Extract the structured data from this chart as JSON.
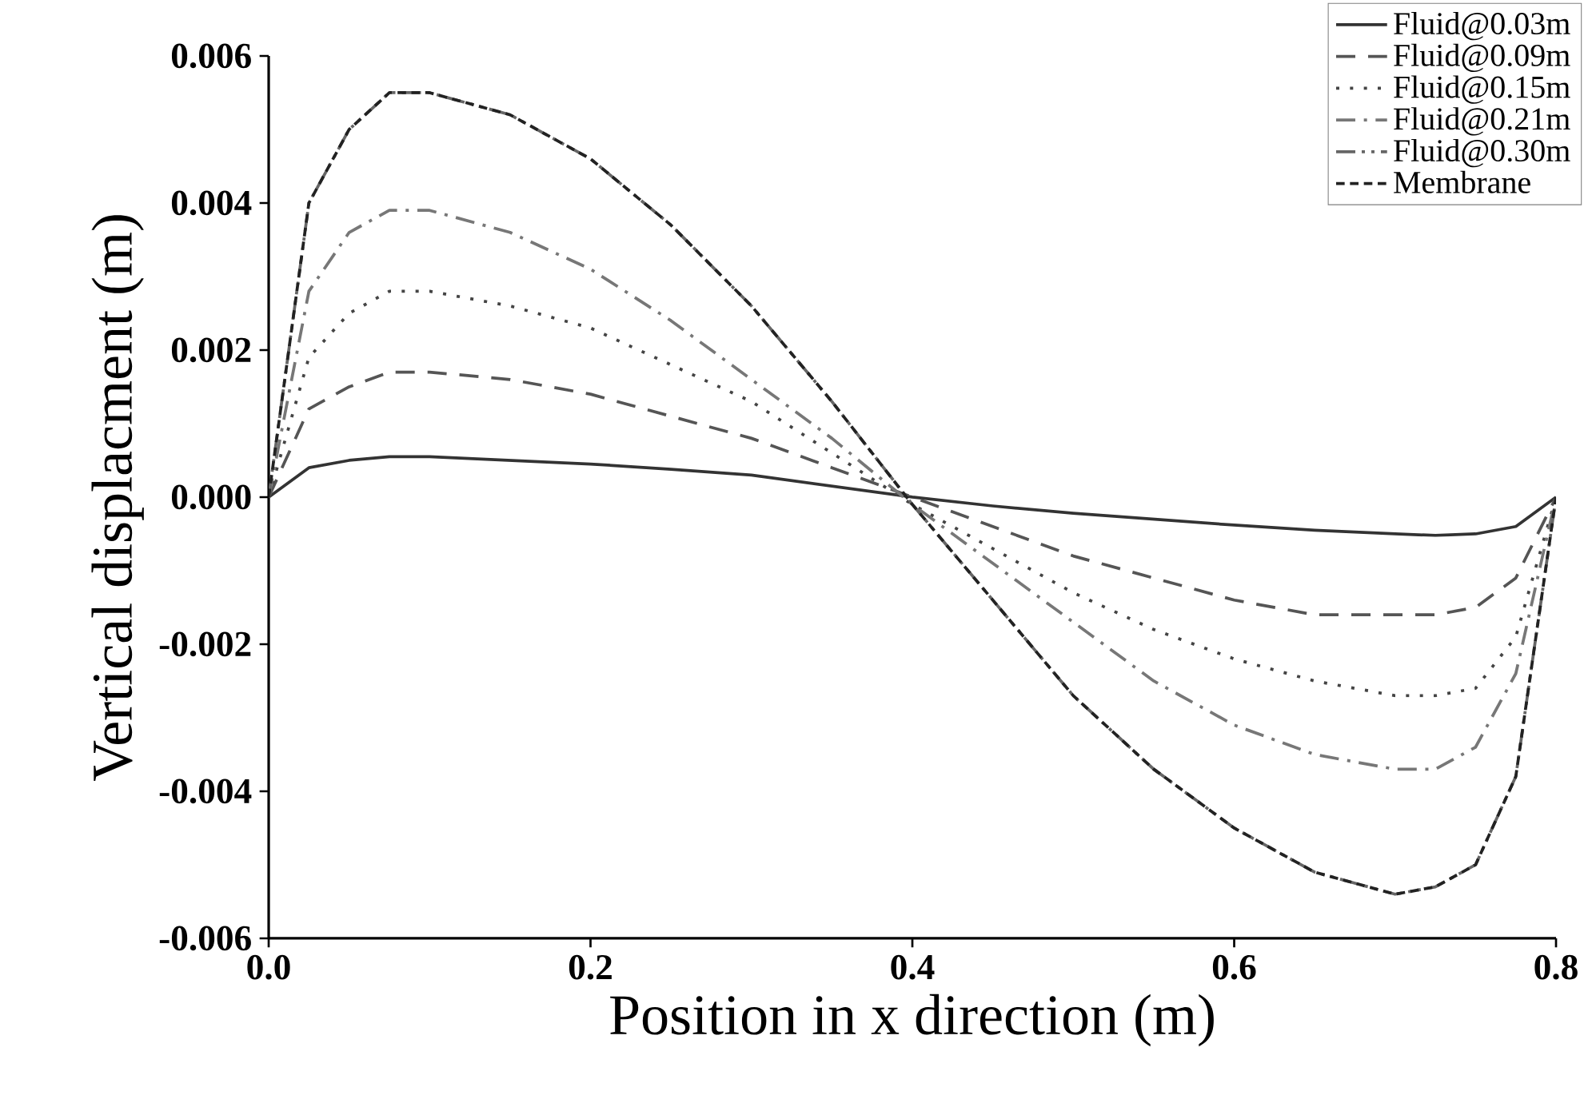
{
  "chart_data": {
    "type": "line",
    "xlabel": "Position in x direction (m)",
    "ylabel": "Vertical displacment (m)",
    "x": [
      0,
      0.025,
      0.05,
      0.075,
      0.1,
      0.15,
      0.2,
      0.25,
      0.3,
      0.35,
      0.4,
      0.45,
      0.5,
      0.55,
      0.6,
      0.65,
      0.7,
      0.725,
      0.75,
      0.775,
      0.8
    ],
    "xlim": [
      0,
      0.8
    ],
    "ylim": [
      -0.006,
      0.006
    ],
    "xticks": [
      {
        "value": 0,
        "label": "0.0"
      },
      {
        "value": 0.2,
        "label": "0.2"
      },
      {
        "value": 0.4,
        "label": "0.4"
      },
      {
        "value": 0.6,
        "label": "0.6"
      },
      {
        "value": 0.8,
        "label": "0.8"
      }
    ],
    "yticks": [
      {
        "value": -0.006,
        "label": "-0.006"
      },
      {
        "value": -0.004,
        "label": "-0.004"
      },
      {
        "value": -0.002,
        "label": "-0.002"
      },
      {
        "value": 0,
        "label": "0.000"
      },
      {
        "value": 0.002,
        "label": "0.002"
      },
      {
        "value": 0.004,
        "label": "0.004"
      },
      {
        "value": 0.006,
        "label": "0.006"
      }
    ],
    "grid": false,
    "legend": "top right",
    "series": [
      {
        "name": "Fluid@0.03m",
        "color": "#333333",
        "line_style": "solid",
        "values": [
          0,
          0.0004,
          0.0005,
          0.00055,
          0.00055,
          0.0005,
          0.00045,
          0.00038,
          0.0003,
          0.00015,
          0,
          -0.00012,
          -0.00022,
          -0.0003,
          -0.00038,
          -0.00045,
          -0.0005,
          -0.00052,
          -0.0005,
          -0.0004,
          0
        ]
      },
      {
        "name": "Fluid@0.09m",
        "color": "#555555",
        "line_style": "dashed",
        "values": [
          0,
          0.0012,
          0.0015,
          0.0017,
          0.0017,
          0.0016,
          0.0014,
          0.0011,
          0.0008,
          0.0004,
          0,
          -0.0004,
          -0.0008,
          -0.0011,
          -0.0014,
          -0.0016,
          -0.0016,
          -0.0016,
          -0.0015,
          -0.0011,
          0
        ]
      },
      {
        "name": "Fluid@0.15m",
        "color": "#444444",
        "line_style": "dotted",
        "values": [
          0,
          0.0019,
          0.0025,
          0.0028,
          0.0028,
          0.0026,
          0.0023,
          0.0018,
          0.0013,
          0.0006,
          -0.0001,
          -0.0007,
          -0.0013,
          -0.0018,
          -0.0022,
          -0.0025,
          -0.0027,
          -0.0027,
          -0.0026,
          -0.0019,
          0
        ]
      },
      {
        "name": "Fluid@0.21m",
        "color": "#777777",
        "line_style": "dashdot",
        "values": [
          0,
          0.0028,
          0.0036,
          0.0039,
          0.0039,
          0.0036,
          0.0031,
          0.0024,
          0.0016,
          0.0008,
          -0.0001,
          -0.0009,
          -0.0017,
          -0.0025,
          -0.0031,
          -0.0035,
          -0.0037,
          -0.0037,
          -0.0034,
          -0.0024,
          0
        ]
      },
      {
        "name": "Fluid@0.30m",
        "color": "#666666",
        "line_style": "dashdotdot",
        "values": [
          0,
          0.004,
          0.005,
          0.0055,
          0.0055,
          0.0052,
          0.0046,
          0.0037,
          0.0026,
          0.0013,
          -0.0001,
          -0.0014,
          -0.0027,
          -0.0037,
          -0.0045,
          -0.0051,
          -0.0054,
          -0.0053,
          -0.005,
          -0.0038,
          0
        ]
      },
      {
        "name": "Membrane",
        "color": "#222222",
        "line_style": "densedash",
        "values": [
          0,
          0.004,
          0.005,
          0.0055,
          0.0055,
          0.0052,
          0.0046,
          0.0037,
          0.0026,
          0.0013,
          -0.0001,
          -0.0014,
          -0.0027,
          -0.0037,
          -0.0045,
          -0.0051,
          -0.0054,
          -0.0053,
          -0.005,
          -0.0038,
          0
        ]
      }
    ]
  }
}
